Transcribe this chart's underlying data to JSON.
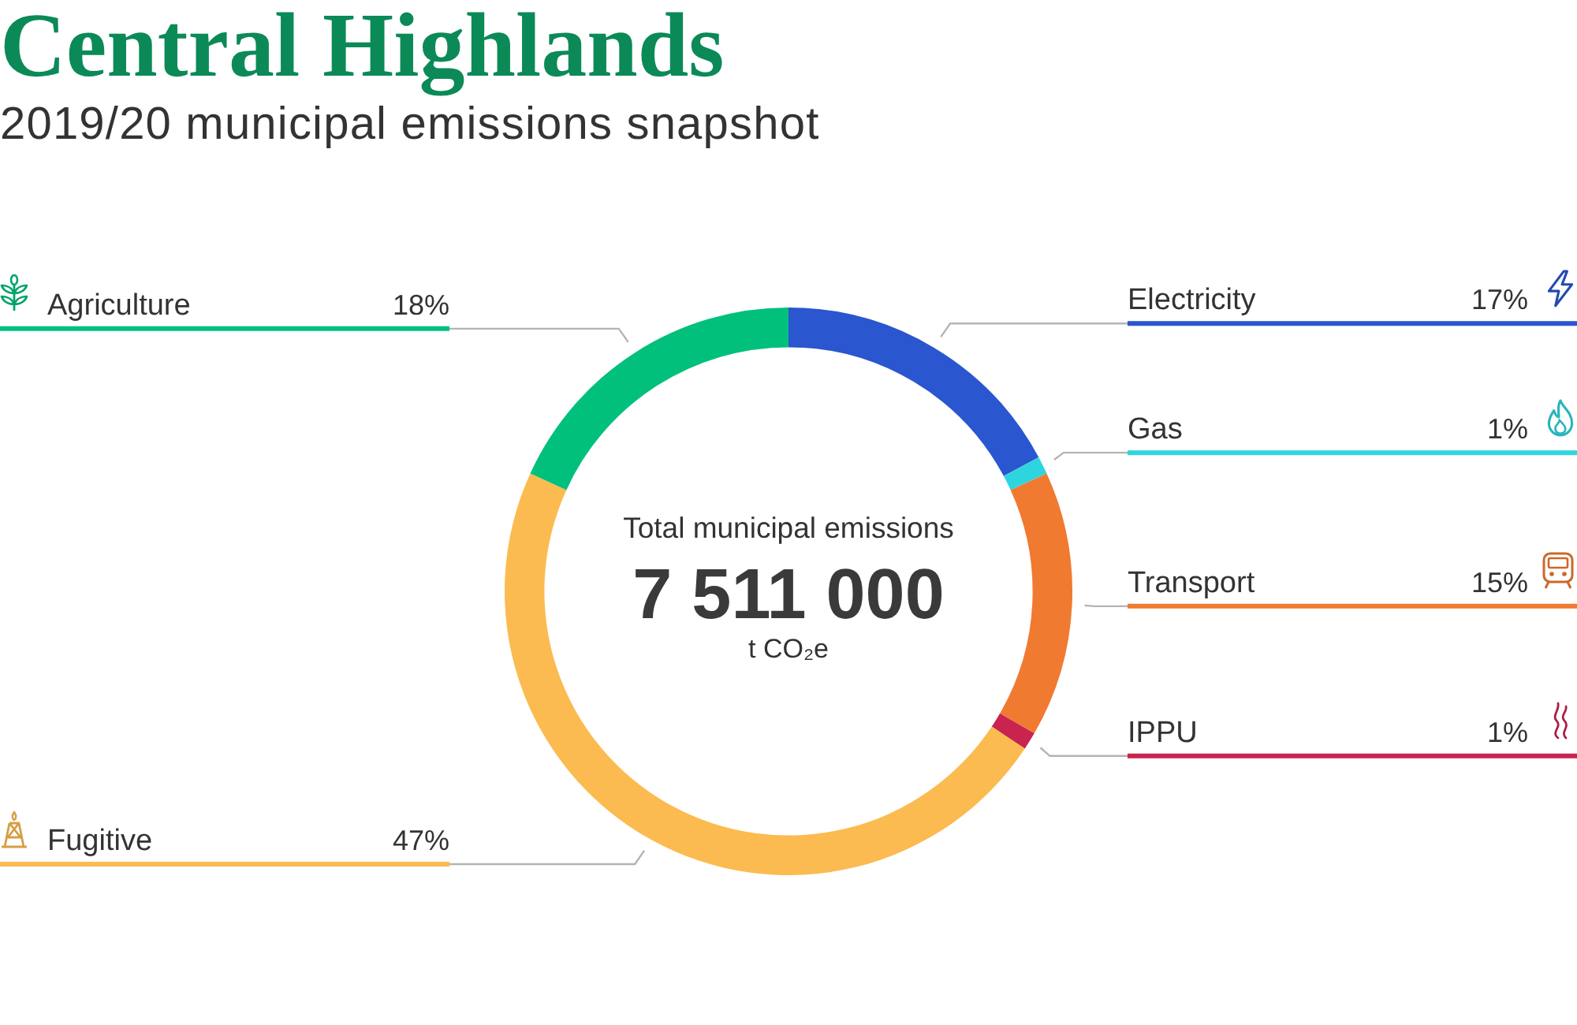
{
  "chart_data": {
    "type": "donut",
    "title": "Central Highlands",
    "subtitle": "2019/20 municipal emissions snapshot",
    "categories": [
      "Electricity",
      "Gas",
      "Transport",
      "IPPU",
      "Fugitive",
      "Agriculture"
    ],
    "values": [
      17,
      1,
      15,
      1,
      47,
      18
    ],
    "value_labels": [
      "17%",
      "1%",
      "15%",
      "1%",
      "47%",
      "18%"
    ],
    "colors": [
      "#2a56cf",
      "#2fd5de",
      "#f07a30",
      "#c9234f",
      "#fbbb50",
      "#00c07c"
    ],
    "annotations": [
      "Total municipal emissions",
      "7 511 000",
      "t CO₂e"
    ]
  }
}
